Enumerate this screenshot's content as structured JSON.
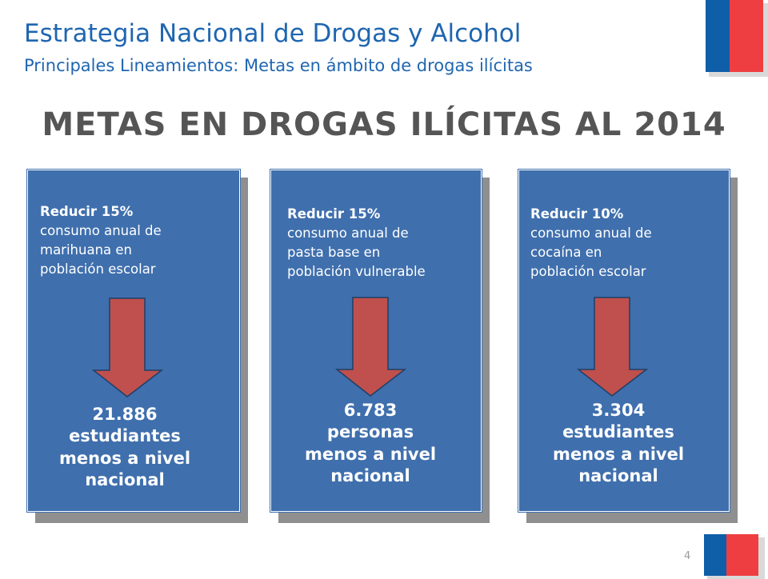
{
  "header": {
    "title": "Estrategia Nacional de Drogas y Alcohol",
    "subtitle": "Principales Lineamientos: Metas  en ámbito de drogas ilícitas"
  },
  "main_heading": "METAS EN DROGAS ILÍCITAS AL 2014",
  "cards": [
    {
      "goal_strong": "Reducir 15%",
      "goal_lines": [
        "consumo anual de",
        "marihuana en",
        "población escolar"
      ],
      "result_lines": [
        "21.886",
        "estudiantes",
        "menos a nivel",
        "nacional"
      ]
    },
    {
      "goal_strong": "Reducir 15%",
      "goal_lines": [
        "consumo anual de",
        "pasta base en",
        "población vulnerable"
      ],
      "result_lines": [
        "6.783",
        "personas",
        "menos a nivel",
        "nacional"
      ]
    },
    {
      "goal_strong": "Reducir 10%",
      "goal_lines": [
        "consumo anual de",
        "cocaína en",
        "población escolar"
      ],
      "result_lines": [
        "3.304",
        "estudiantes",
        "menos a nivel",
        "nacional"
      ]
    }
  ],
  "page_number": "4",
  "colors": {
    "title_blue": "#1f66b0",
    "card_blue": "#3f6fad",
    "arrow_red": "#c0504d",
    "flag_blue": "#0f5ea8",
    "flag_red": "#ef3e42"
  },
  "icons": [
    "chile-flag-icon",
    "down-arrow-icon"
  ]
}
